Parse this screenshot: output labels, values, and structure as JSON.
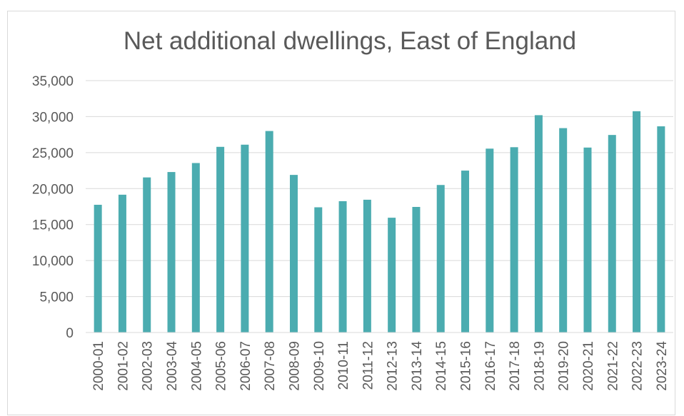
{
  "chart_data": {
    "type": "bar",
    "title": "Net additional dwellings, East of England",
    "xlabel": "",
    "ylabel": "",
    "ylim": [
      0,
      35000
    ],
    "yticks": [
      0,
      5000,
      10000,
      15000,
      20000,
      25000,
      30000,
      35000
    ],
    "ytick_labels": [
      "0",
      "5,000",
      "10,000",
      "15,000",
      "20,000",
      "25,000",
      "30,000",
      "35,000"
    ],
    "grid": true,
    "legend": "none",
    "bar_color": "#4bacb0",
    "categories": [
      "2000-01",
      "2001-02",
      "2002-03",
      "2003-04",
      "2004-05",
      "2005-06",
      "2006-07",
      "2007-08",
      "2008-09",
      "2009-10",
      "2010-11",
      "2011-12",
      "2012-13",
      "2013-14",
      "2014-15",
      "2015-16",
      "2016-17",
      "2017-18",
      "2018-19",
      "2019-20",
      "2020-21",
      "2021-22",
      "2022-23",
      "2023-24"
    ],
    "values": [
      17750,
      19150,
      21550,
      22300,
      23550,
      25800,
      26100,
      28000,
      21900,
      17400,
      18250,
      18450,
      15950,
      17450,
      20500,
      22500,
      25550,
      25750,
      30200,
      28400,
      25700,
      27450,
      30750,
      28650
    ]
  }
}
